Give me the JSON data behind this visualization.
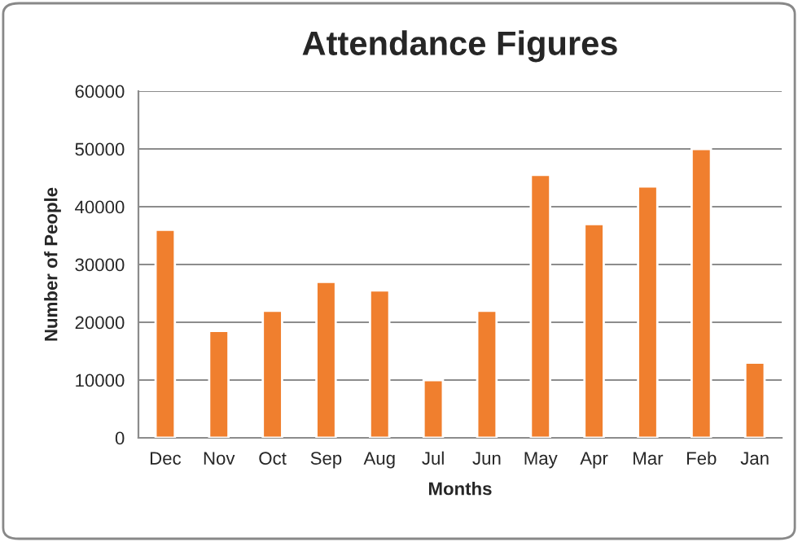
{
  "chart_data": {
    "type": "bar",
    "title": "Attendance Figures",
    "xlabel": "Months",
    "ylabel": "Number of People",
    "categories": [
      "Dec",
      "Nov",
      "Oct",
      "Sep",
      "Aug",
      "Jul",
      "Jun",
      "May",
      "Apr",
      "Mar",
      "Feb",
      "Jan"
    ],
    "values": [
      36000,
      18500,
      22000,
      27000,
      25500,
      10000,
      22000,
      45500,
      37000,
      43500,
      50000,
      13000
    ],
    "color": "#f07f2e",
    "ylim": [
      0,
      60000
    ],
    "yticks": [
      0,
      10000,
      20000,
      30000,
      40000,
      50000,
      60000
    ],
    "grid": "y",
    "legend": false
  }
}
